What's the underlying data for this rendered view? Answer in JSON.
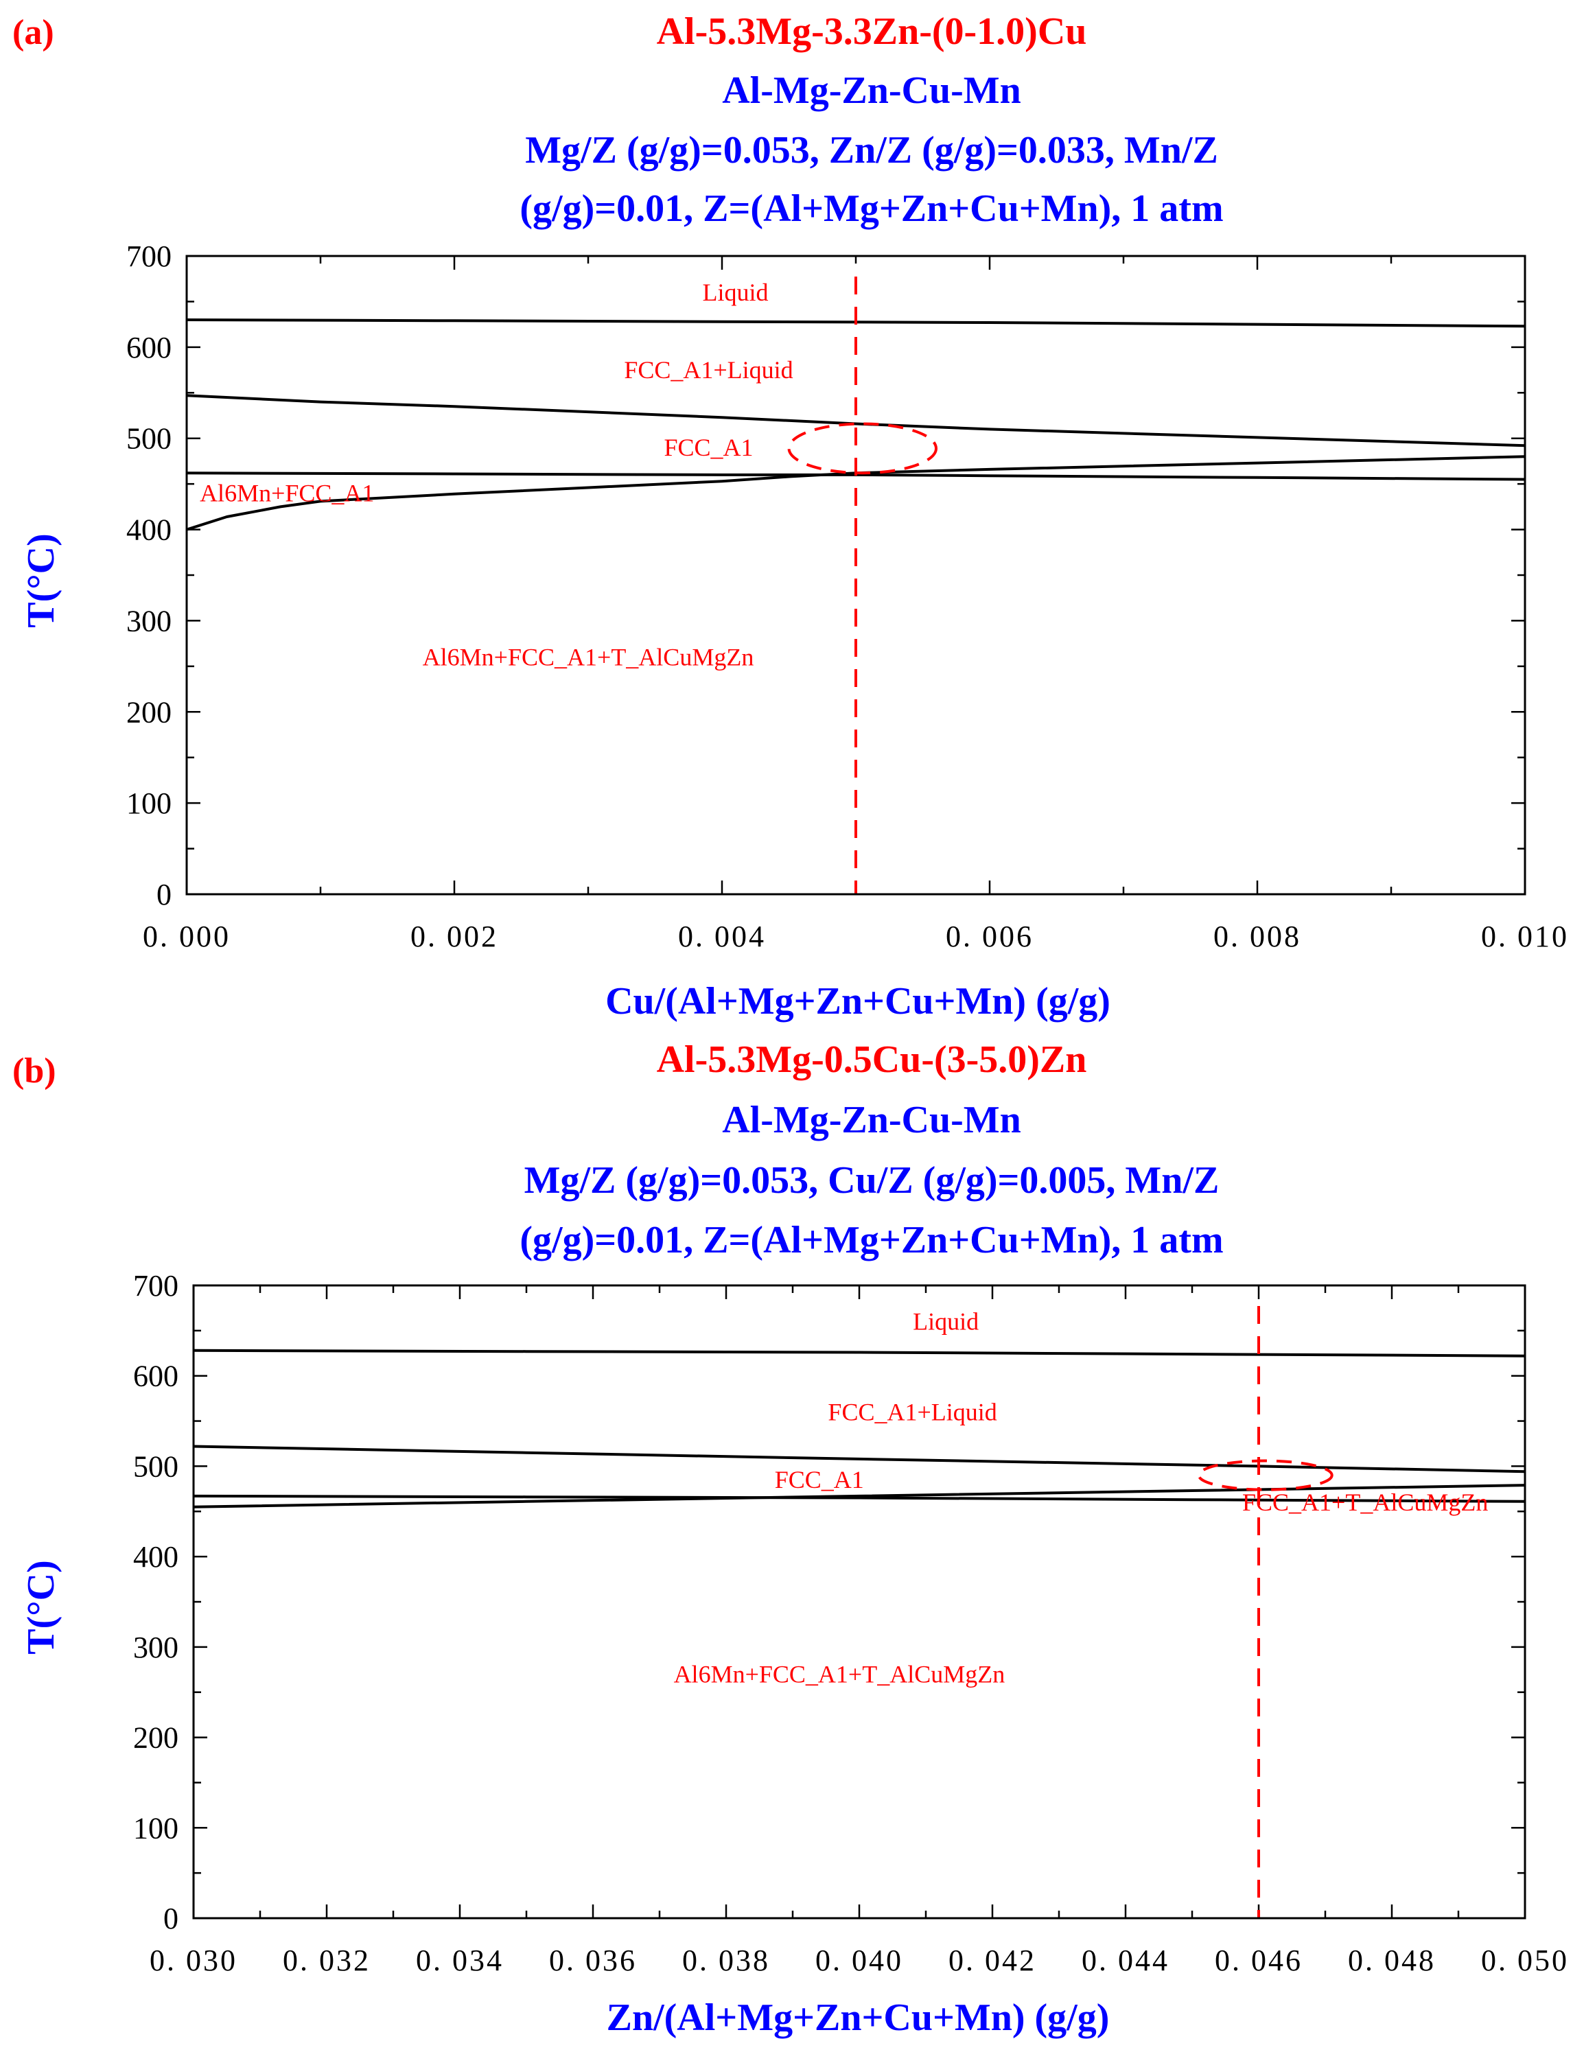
{
  "chart_data": [
    {
      "type": "line",
      "panel_label": "(a)",
      "title_lines": [
        "Al-5.3Mg-3.3Zn-(0-1.0)Cu",
        "Al-Mg-Zn-Cu-Mn",
        "Mg/Z (g/g)=0.053, Zn/Z (g/g)=0.033, Mn/Z",
        "(g/g)=0.01, Z=(Al+Mg+Zn+Cu+Mn), 1 atm"
      ],
      "title_colors": [
        "#ff0000",
        "#0000ff",
        "#0000ff",
        "#0000ff"
      ],
      "xlabel": "Cu/(Al+Mg+Zn+Cu+Mn) (g/g)",
      "ylabel": "T(°C)",
      "xlim": [
        0.0,
        0.01
      ],
      "ylim": [
        0,
        700
      ],
      "xticks": [
        0.0,
        0.002,
        0.004,
        0.006,
        0.008,
        0.01
      ],
      "xtick_labels": [
        "0. 000",
        "0. 002",
        "0. 004",
        "0. 006",
        "0. 008",
        "0. 010"
      ],
      "yticks": [
        0,
        100,
        200,
        300,
        400,
        500,
        600,
        700
      ],
      "ytick_labels": [
        "0",
        "100",
        "200",
        "300",
        "400",
        "500",
        "600",
        "700"
      ],
      "grid": false,
      "series": [
        {
          "points": [
            [
              0.0,
              630
            ],
            [
              0.002,
              629
            ],
            [
              0.004,
              628
            ],
            [
              0.006,
              627
            ],
            [
              0.008,
              625
            ],
            [
              0.01,
              623
            ]
          ]
        },
        {
          "points": [
            [
              0.0,
              547
            ],
            [
              0.001,
              540
            ],
            [
              0.002,
              535
            ],
            [
              0.004,
              523
            ],
            [
              0.005,
              516
            ],
            [
              0.006,
              510
            ],
            [
              0.008,
              501
            ],
            [
              0.01,
              492
            ]
          ]
        },
        {
          "points": [
            [
              0.0,
              462
            ],
            [
              0.002,
              461
            ],
            [
              0.004,
              460
            ],
            [
              0.005,
              460
            ],
            [
              0.006,
              459
            ],
            [
              0.008,
              457
            ],
            [
              0.01,
              455
            ]
          ]
        },
        {
          "points": [
            [
              0.0,
              400
            ],
            [
              0.0003,
              414
            ],
            [
              0.0007,
              425
            ],
            [
              0.001,
              431
            ],
            [
              0.002,
              439
            ],
            [
              0.003,
              446
            ],
            [
              0.004,
              453
            ],
            [
              0.0045,
              458
            ],
            [
              0.005,
              462
            ],
            [
              0.006,
              466
            ],
            [
              0.008,
              473
            ],
            [
              0.01,
              480
            ]
          ]
        }
      ],
      "region_labels": [
        {
          "text": "Liquid",
          "x": 0.0041,
          "y": 660
        },
        {
          "text": "FCC_A1+Liquid",
          "x": 0.0039,
          "y": 575
        },
        {
          "text": "FCC_A1",
          "x": 0.0039,
          "y": 490
        },
        {
          "text": "Al6Mn+FCC_A1",
          "x": 0.00075,
          "y": 440
        },
        {
          "text": "Al6Mn+FCC_A1+T_AlCuMgZn",
          "x": 0.003,
          "y": 260
        }
      ],
      "marker_line_x": 0.005,
      "marker_ellipse": {
        "x_min": 0.0045,
        "x_max": 0.0056,
        "y_min": 462,
        "y_max": 516
      },
      "annotation_color": "#ff0000"
    },
    {
      "type": "line",
      "panel_label": "(b)",
      "title_lines": [
        "Al-5.3Mg-0.5Cu-(3-5.0)Zn",
        "Al-Mg-Zn-Cu-Mn",
        "Mg/Z (g/g)=0.053, Cu/Z (g/g)=0.005, Mn/Z",
        "(g/g)=0.01, Z=(Al+Mg+Zn+Cu+Mn), 1 atm"
      ],
      "title_colors": [
        "#ff0000",
        "#0000ff",
        "#0000ff",
        "#0000ff"
      ],
      "xlabel": "Zn/(Al+Mg+Zn+Cu+Mn) (g/g)",
      "ylabel": "T(°C)",
      "xlim": [
        0.03,
        0.05
      ],
      "ylim": [
        0,
        700
      ],
      "xticks": [
        0.03,
        0.032,
        0.034,
        0.036,
        0.038,
        0.04,
        0.042,
        0.044,
        0.046,
        0.048,
        0.05
      ],
      "xtick_labels": [
        "0. 030",
        "0. 032",
        "0. 034",
        "0. 036",
        "0. 038",
        "0. 040",
        "0. 042",
        "0. 044",
        "0. 046",
        "0. 048",
        "0. 050"
      ],
      "yticks": [
        0,
        100,
        200,
        300,
        400,
        500,
        600,
        700
      ],
      "ytick_labels": [
        "0",
        "100",
        "200",
        "300",
        "400",
        "500",
        "600",
        "700"
      ],
      "grid": false,
      "series": [
        {
          "points": [
            [
              0.03,
              628
            ],
            [
              0.035,
              627
            ],
            [
              0.04,
              626
            ],
            [
              0.045,
              624
            ],
            [
              0.05,
              622
            ]
          ]
        },
        {
          "points": [
            [
              0.03,
              522
            ],
            [
              0.035,
              515
            ],
            [
              0.04,
              508
            ],
            [
              0.046,
              500
            ],
            [
              0.05,
              494
            ]
          ]
        },
        {
          "points": [
            [
              0.03,
              467
            ],
            [
              0.035,
              466
            ],
            [
              0.04,
              465
            ],
            [
              0.045,
              463
            ],
            [
              0.05,
              461
            ]
          ]
        },
        {
          "points": [
            [
              0.03,
              455
            ],
            [
              0.035,
              461
            ],
            [
              0.04,
              467
            ],
            [
              0.045,
              473
            ],
            [
              0.05,
              479
            ]
          ]
        }
      ],
      "region_labels": [
        {
          "text": "Liquid",
          "x": 0.0413,
          "y": 660
        },
        {
          "text": "FCC_A1+Liquid",
          "x": 0.0408,
          "y": 560
        },
        {
          "text": "FCC_A1",
          "x": 0.0394,
          "y": 485
        },
        {
          "text": "FCC_A1+T_AlCuMgZn",
          "x": 0.0476,
          "y": 460
        },
        {
          "text": "Al6Mn+FCC_A1+T_AlCuMgZn",
          "x": 0.0397,
          "y": 270
        }
      ],
      "marker_line_x": 0.046,
      "marker_ellipse": {
        "x_min": 0.0451,
        "x_max": 0.0471,
        "y_min": 474,
        "y_max": 506
      },
      "annotation_color": "#ff0000"
    }
  ]
}
